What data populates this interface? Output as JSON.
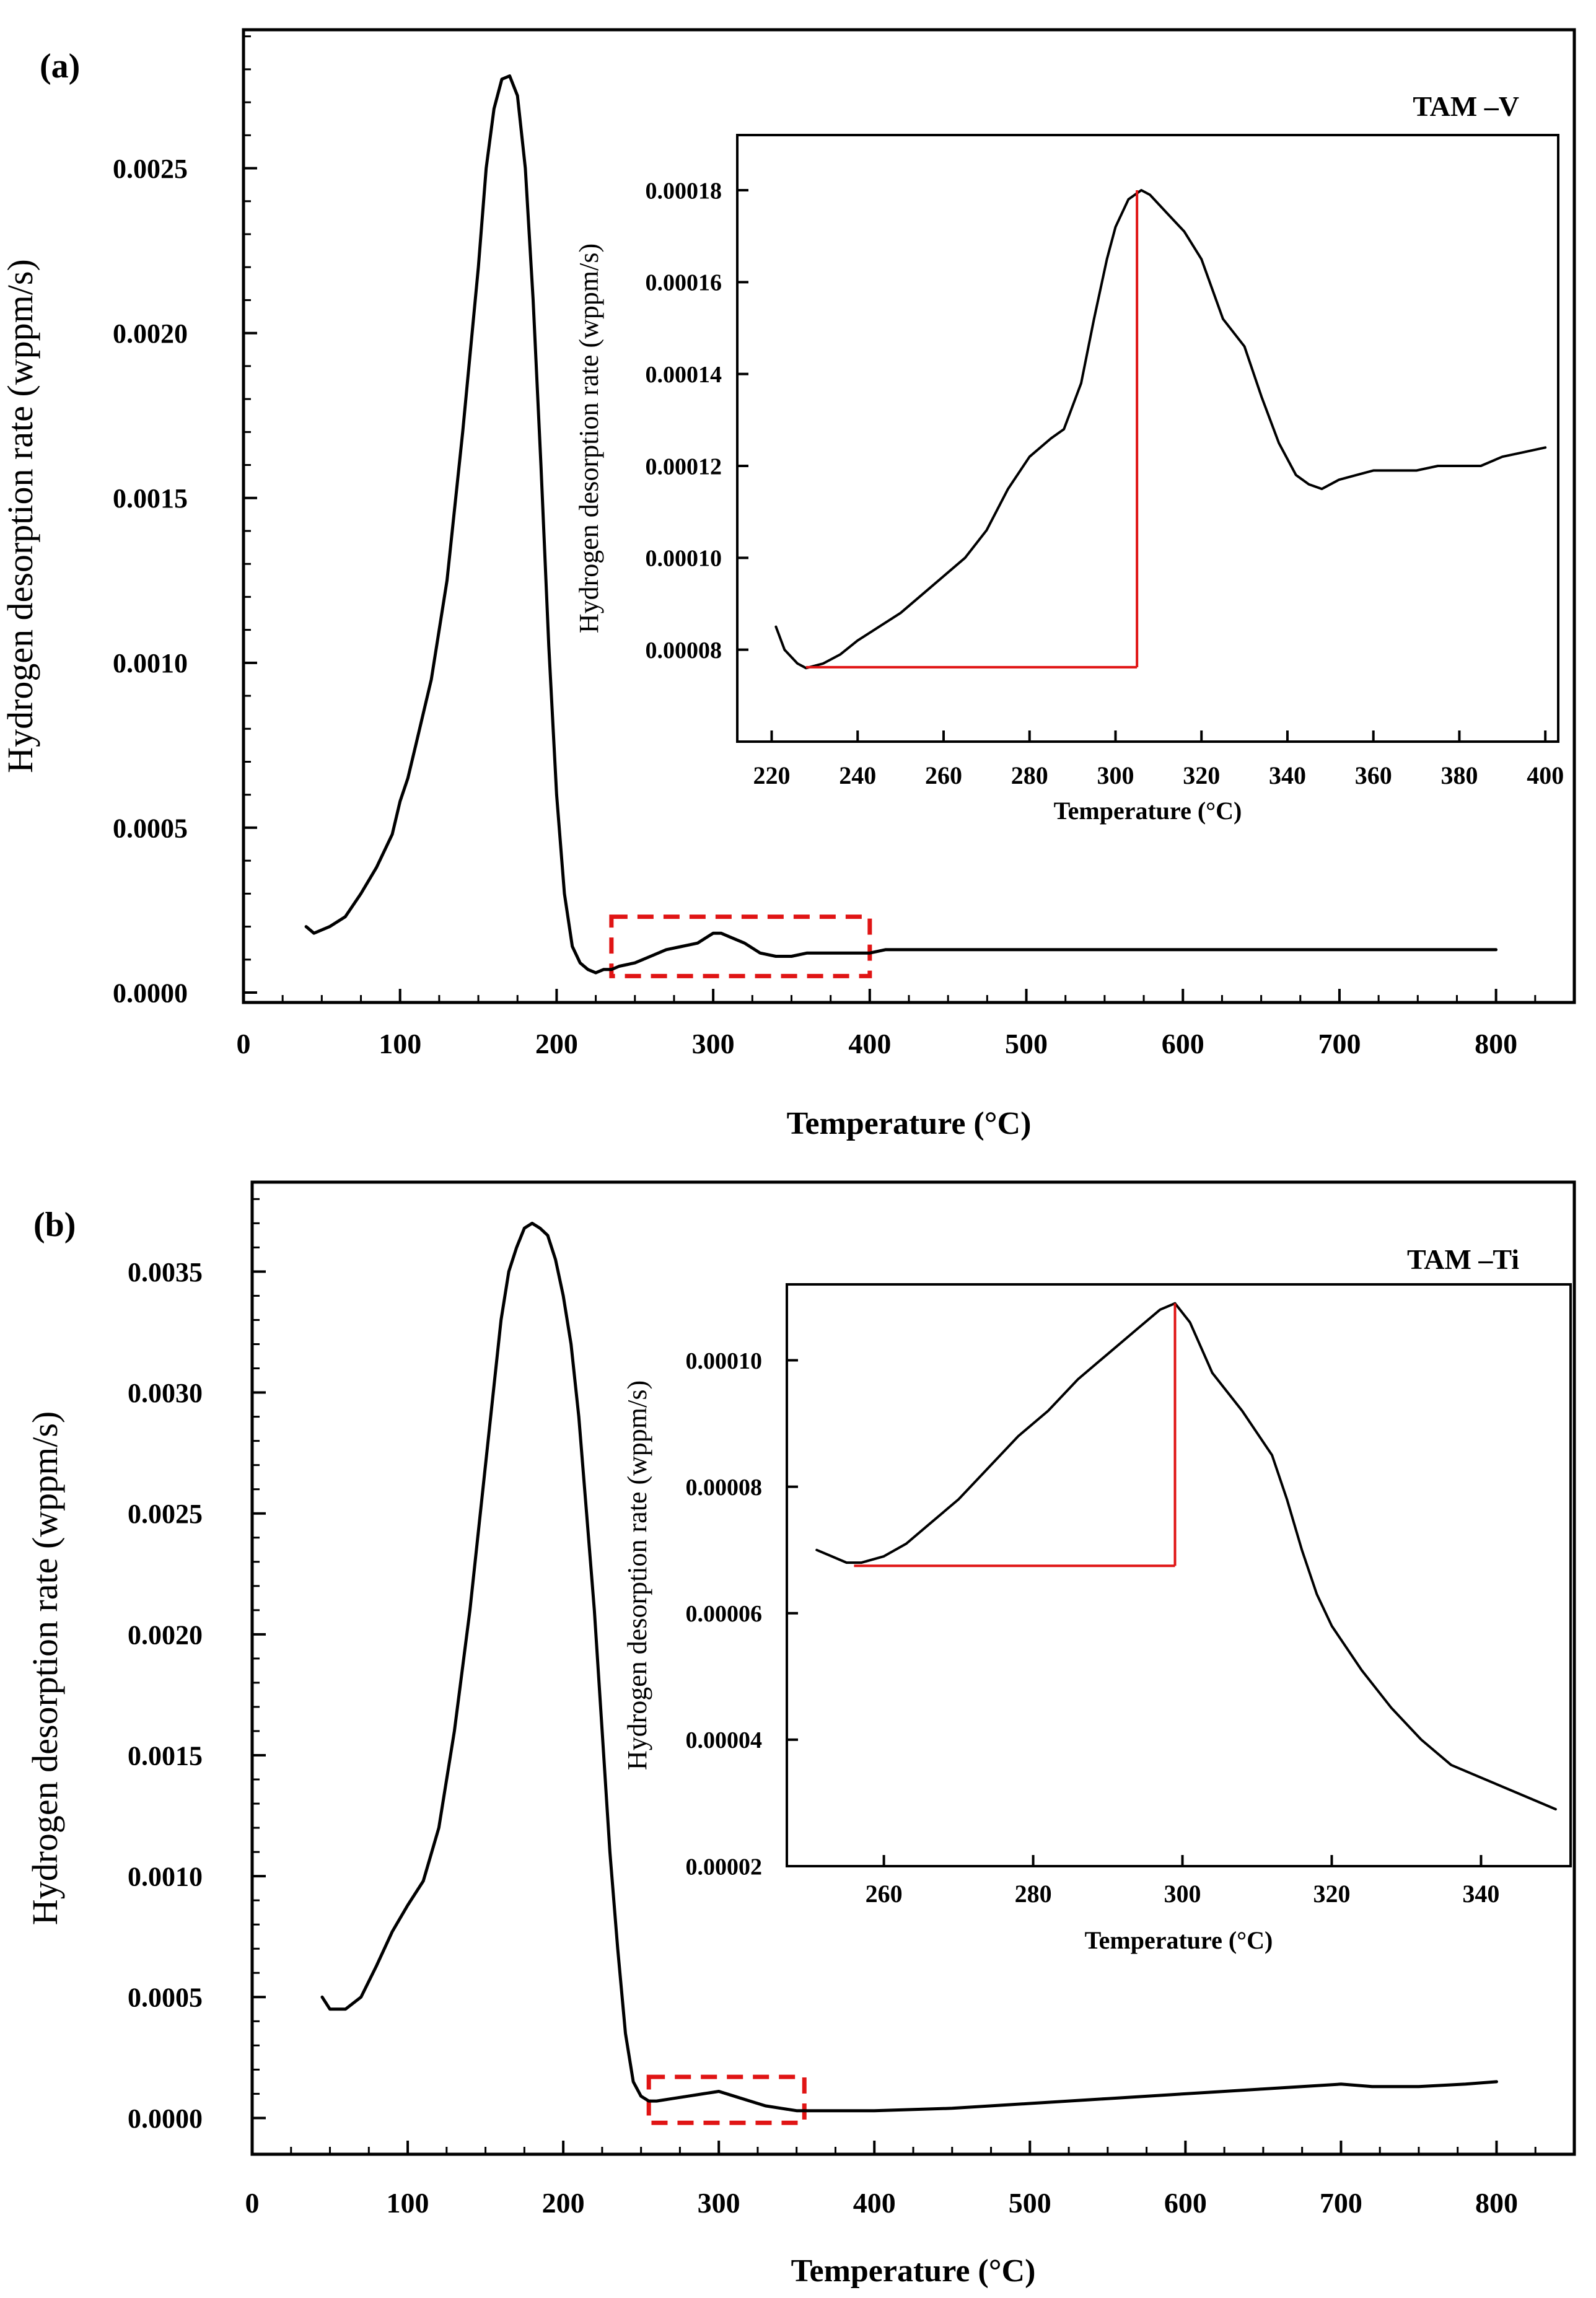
{
  "colors": {
    "series": "#000000",
    "highlight": "#e01414",
    "axis": "#000000",
    "background": "#ffffff"
  },
  "chart_data": [
    {
      "id": "a-main",
      "panel_label": "(a)",
      "type": "line",
      "xlabel": "Temperature (°C)",
      "ylabel": "Hydrogen desorption rate (wppm/s)",
      "xlim": [
        0,
        850
      ],
      "ylim": [
        -3e-05,
        0.00292
      ],
      "xticks": [
        0,
        100,
        200,
        300,
        400,
        500,
        600,
        700,
        800
      ],
      "yticks": [
        0.0,
        0.0005,
        0.001,
        0.0015,
        0.002,
        0.0025
      ],
      "ytick_labels": [
        "0.0000",
        "0.0005",
        "0.0010",
        "0.0015",
        "0.0020",
        "0.0025"
      ],
      "y_minor_step": 0.0001,
      "x_minor_step": 25,
      "highlight_box": {
        "x": [
          235,
          400
        ],
        "y": [
          5e-05,
          0.00023
        ]
      },
      "series": [
        {
          "name": "TAM-V",
          "x": [
            40,
            45,
            55,
            65,
            75,
            85,
            95,
            100,
            105,
            110,
            120,
            130,
            140,
            150,
            155,
            160,
            165,
            170,
            175,
            180,
            185,
            190,
            195,
            200,
            205,
            210,
            215,
            220,
            225,
            230,
            235,
            240,
            250,
            260,
            270,
            280,
            290,
            300,
            305,
            310,
            320,
            330,
            340,
            350,
            360,
            380,
            400,
            410,
            420,
            450,
            500,
            550,
            600,
            650,
            700,
            750,
            800
          ],
          "y": [
            0.0002,
            0.00018,
            0.0002,
            0.00023,
            0.0003,
            0.00038,
            0.00048,
            0.00058,
            0.00065,
            0.00075,
            0.00095,
            0.00125,
            0.0017,
            0.0022,
            0.0025,
            0.00268,
            0.00277,
            0.00278,
            0.00272,
            0.0025,
            0.0021,
            0.0016,
            0.00105,
            0.0006,
            0.0003,
            0.00014,
            9e-05,
            7e-05,
            6e-05,
            7e-05,
            7e-05,
            8e-05,
            9e-05,
            0.00011,
            0.00013,
            0.00014,
            0.00015,
            0.00018,
            0.00018,
            0.00017,
            0.00015,
            0.00012,
            0.00011,
            0.00011,
            0.00012,
            0.00012,
            0.00012,
            0.00013,
            0.00013,
            0.00013,
            0.00013,
            0.00013,
            0.00013,
            0.00013,
            0.00013,
            0.00013,
            0.00013
          ]
        }
      ]
    },
    {
      "id": "a-inset",
      "type": "line",
      "legend": "TAM –V",
      "xlabel": "Temperature (°C)",
      "ylabel": "Hydrogen desorption rate (wppm/s)",
      "xlim": [
        212,
        403
      ],
      "ylim": [
        6e-05,
        0.000192
      ],
      "xticks": [
        220,
        240,
        260,
        280,
        300,
        320,
        340,
        360,
        380,
        400
      ],
      "yticks": [
        8e-05,
        0.0001,
        0.00012,
        0.00014,
        0.00016,
        0.00018
      ],
      "ytick_labels": [
        "0.00008",
        "0.00010",
        "0.00012",
        "0.00014",
        "0.00016",
        "0.00018"
      ],
      "annotation": {
        "baseline_x": [
          228,
          305
        ],
        "baseline_y": 7.62e-05,
        "peak_x": 305,
        "peak_y": 0.00018
      },
      "series": [
        {
          "name": "TAM-V inset",
          "x": [
            221,
            223,
            226,
            228,
            232,
            236,
            240,
            245,
            250,
            255,
            260,
            265,
            270,
            275,
            280,
            285,
            288,
            292,
            295,
            298,
            300,
            303,
            306,
            308,
            312,
            316,
            320,
            325,
            330,
            334,
            338,
            342,
            345,
            348,
            352,
            356,
            360,
            365,
            370,
            375,
            380,
            385,
            390,
            395,
            400
          ],
          "y": [
            8.5e-05,
            8e-05,
            7.7e-05,
            7.6e-05,
            7.7e-05,
            7.9e-05,
            8.2e-05,
            8.5e-05,
            8.8e-05,
            9.2e-05,
            9.6e-05,
            0.0001,
            0.000106,
            0.000115,
            0.000122,
            0.000126,
            0.000128,
            0.000138,
            0.000152,
            0.000165,
            0.000172,
            0.000178,
            0.00018,
            0.000179,
            0.000175,
            0.000171,
            0.000165,
            0.000152,
            0.000146,
            0.000135,
            0.000125,
            0.000118,
            0.000116,
            0.000115,
            0.000117,
            0.000118,
            0.000119,
            0.000119,
            0.000119,
            0.00012,
            0.00012,
            0.00012,
            0.000122,
            0.000123,
            0.000124
          ]
        }
      ]
    },
    {
      "id": "b-main",
      "panel_label": "(b)",
      "type": "line",
      "xlabel": "Temperature (°C)",
      "ylabel": "Hydrogen desorption rate (wppm/s)",
      "xlim": [
        0,
        850
      ],
      "ylim": [
        -0.00015,
        0.00387
      ],
      "xticks": [
        0,
        100,
        200,
        300,
        400,
        500,
        600,
        700,
        800
      ],
      "yticks": [
        0.0,
        0.0005,
        0.001,
        0.0015,
        0.002,
        0.0025,
        0.003,
        0.0035
      ],
      "ytick_labels": [
        "0.0000",
        "0.0005",
        "0.0010",
        "0.0015",
        "0.0020",
        "0.0025",
        "0.0030",
        "0.0035"
      ],
      "y_minor_step": 0.0001,
      "x_minor_step": 25,
      "highlight_box": {
        "x": [
          255,
          355
        ],
        "y": [
          -2e-05,
          0.00017
        ]
      },
      "series": [
        {
          "name": "TAM-Ti",
          "x": [
            45,
            50,
            60,
            70,
            80,
            90,
            100,
            110,
            120,
            130,
            140,
            150,
            160,
            165,
            170,
            175,
            180,
            185,
            190,
            195,
            200,
            205,
            210,
            215,
            220,
            225,
            230,
            235,
            240,
            245,
            250,
            255,
            260,
            270,
            280,
            290,
            300,
            310,
            320,
            330,
            340,
            350,
            360,
            380,
            400,
            450,
            500,
            550,
            600,
            650,
            700,
            720,
            750,
            780,
            800
          ],
          "y": [
            0.0005,
            0.00045,
            0.00045,
            0.0005,
            0.00063,
            0.00077,
            0.00088,
            0.00098,
            0.0012,
            0.0016,
            0.0021,
            0.0027,
            0.0033,
            0.0035,
            0.0036,
            0.00368,
            0.0037,
            0.00368,
            0.00365,
            0.00355,
            0.0034,
            0.0032,
            0.0029,
            0.0025,
            0.0021,
            0.0016,
            0.0011,
            0.0007,
            0.00035,
            0.00015,
            9e-05,
            7e-05,
            7e-05,
            8e-05,
            9e-05,
            0.0001,
            0.00011,
            9e-05,
            7e-05,
            5e-05,
            4e-05,
            3e-05,
            3e-05,
            3e-05,
            3e-05,
            4e-05,
            6e-05,
            8e-05,
            0.0001,
            0.00012,
            0.00014,
            0.00013,
            0.00013,
            0.00014,
            0.00015
          ]
        }
      ]
    },
    {
      "id": "b-inset",
      "type": "line",
      "legend": "TAM –Ti",
      "xlabel": "Temperature (°C)",
      "ylabel": "Hydrogen desorption rate (wppm/s)",
      "xlim": [
        247,
        352
      ],
      "ylim": [
        2e-05,
        0.000112
      ],
      "xticks": [
        260,
        280,
        300,
        320,
        340
      ],
      "yticks": [
        2e-05,
        4e-05,
        6e-05,
        8e-05,
        0.0001
      ],
      "ytick_labels": [
        "0.00002",
        "0.00004",
        "0.00006",
        "0.00008",
        "0.00010"
      ],
      "annotation": {
        "baseline_x": [
          256,
          299
        ],
        "baseline_y": 6.75e-05,
        "peak_x": 299,
        "peak_y": 0.000109
      },
      "series": [
        {
          "name": "TAM-Ti inset",
          "x": [
            251,
            253,
            255,
            257,
            260,
            263,
            266,
            270,
            274,
            278,
            282,
            286,
            290,
            294,
            297,
            299,
            301,
            304,
            308,
            312,
            314,
            316,
            318,
            320,
            324,
            328,
            332,
            336,
            340,
            344,
            348,
            350
          ],
          "y": [
            7e-05,
            6.9e-05,
            6.8e-05,
            6.8e-05,
            6.9e-05,
            7.1e-05,
            7.4e-05,
            7.8e-05,
            8.3e-05,
            8.8e-05,
            9.2e-05,
            9.7e-05,
            0.000101,
            0.000105,
            0.000108,
            0.000109,
            0.000106,
            9.8e-05,
            9.2e-05,
            8.5e-05,
            7.8e-05,
            7e-05,
            6.3e-05,
            5.8e-05,
            5.1e-05,
            4.5e-05,
            4e-05,
            3.6e-05,
            3.4e-05,
            3.2e-05,
            3e-05,
            2.9e-05
          ]
        }
      ]
    }
  ]
}
